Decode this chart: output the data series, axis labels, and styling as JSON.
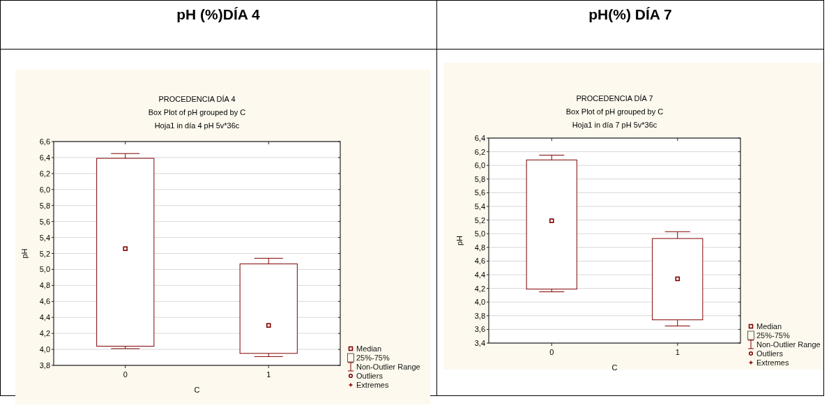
{
  "chart_data": [
    {
      "type": "box",
      "title": "pH (%)DÍA 4",
      "subtitle": "PROCEDENCIA DÍA 4",
      "annotations": [
        "Box Plot of pH grouped by  C",
        "Hoja1 in día 4 pH 5v*36c",
        "Median",
        "25%-75%",
        "Non-Outlier Range",
        "Outliers",
        "Extremes"
      ],
      "xlabel": "C",
      "ylabel": "pH",
      "categories": [
        "0",
        "1"
      ],
      "color": "#800000",
      "grid": "y",
      "boxes": [
        {
          "low": 4.01,
          "q1": 4.04,
          "median": 5.26,
          "q3": 6.39,
          "high": 6.45
        },
        {
          "low": 3.91,
          "q1": 3.95,
          "median": 4.3,
          "q3": 5.07,
          "high": 5.14
        }
      ],
      "ylim": [
        3.8,
        6.6
      ],
      "yticks": [
        {
          "value": 3.8,
          "label": "3,8"
        },
        {
          "value": 4.0,
          "label": "4,0"
        },
        {
          "value": 4.2,
          "label": "4,2"
        },
        {
          "value": 4.4,
          "label": "4,4"
        },
        {
          "value": 4.6,
          "label": "4,6"
        },
        {
          "value": 4.8,
          "label": "4,8"
        },
        {
          "value": 5.0,
          "label": "5,0"
        },
        {
          "value": 5.2,
          "label": "5,2"
        },
        {
          "value": 5.4,
          "label": "5,4"
        },
        {
          "value": 5.6,
          "label": "5,6"
        },
        {
          "value": 5.8,
          "label": "5,8"
        },
        {
          "value": 6.0,
          "label": "6,0"
        },
        {
          "value": 6.2,
          "label": "6,2"
        },
        {
          "value": 6.4,
          "label": "6,4"
        },
        {
          "value": 6.6,
          "label": "6,6"
        }
      ]
    },
    {
      "type": "box",
      "title": "pH(%) DÍA 7",
      "subtitle": "PROCEDENCIA DÍA 7",
      "annotations": [
        "Box Plot of pH grouped by  C",
        "Hoja1 in día 7 pH 5v*36c",
        "Median",
        "25%-75%",
        "Non-Outlier Range",
        "Outliers",
        "Extremes"
      ],
      "xlabel": "C",
      "ylabel": "pH",
      "categories": [
        "0",
        "1"
      ],
      "color": "#800000",
      "grid": "y",
      "boxes": [
        {
          "low": 4.15,
          "q1": 4.19,
          "median": 5.19,
          "q3": 6.08,
          "high": 6.15
        },
        {
          "low": 3.65,
          "q1": 3.74,
          "median": 4.34,
          "q3": 4.93,
          "high": 5.03
        }
      ],
      "ylim": [
        3.4,
        6.4
      ],
      "yticks": [
        {
          "value": 3.4,
          "label": "3,4"
        },
        {
          "value": 3.6,
          "label": "3,6"
        },
        {
          "value": 3.8,
          "label": "3,8"
        },
        {
          "value": 4.0,
          "label": "4,0"
        },
        {
          "value": 4.2,
          "label": "4,2"
        },
        {
          "value": 4.4,
          "label": "4,4"
        },
        {
          "value": 4.6,
          "label": "4,6"
        },
        {
          "value": 4.8,
          "label": "4,8"
        },
        {
          "value": 5.0,
          "label": "5,0"
        },
        {
          "value": 5.2,
          "label": "5,2"
        },
        {
          "value": 5.4,
          "label": "5,4"
        },
        {
          "value": 5.6,
          "label": "5,6"
        },
        {
          "value": 5.8,
          "label": "5,8"
        },
        {
          "value": 6.0,
          "label": "6,0"
        },
        {
          "value": 6.2,
          "label": "6,2"
        },
        {
          "value": 6.4,
          "label": "6,4"
        }
      ]
    }
  ]
}
